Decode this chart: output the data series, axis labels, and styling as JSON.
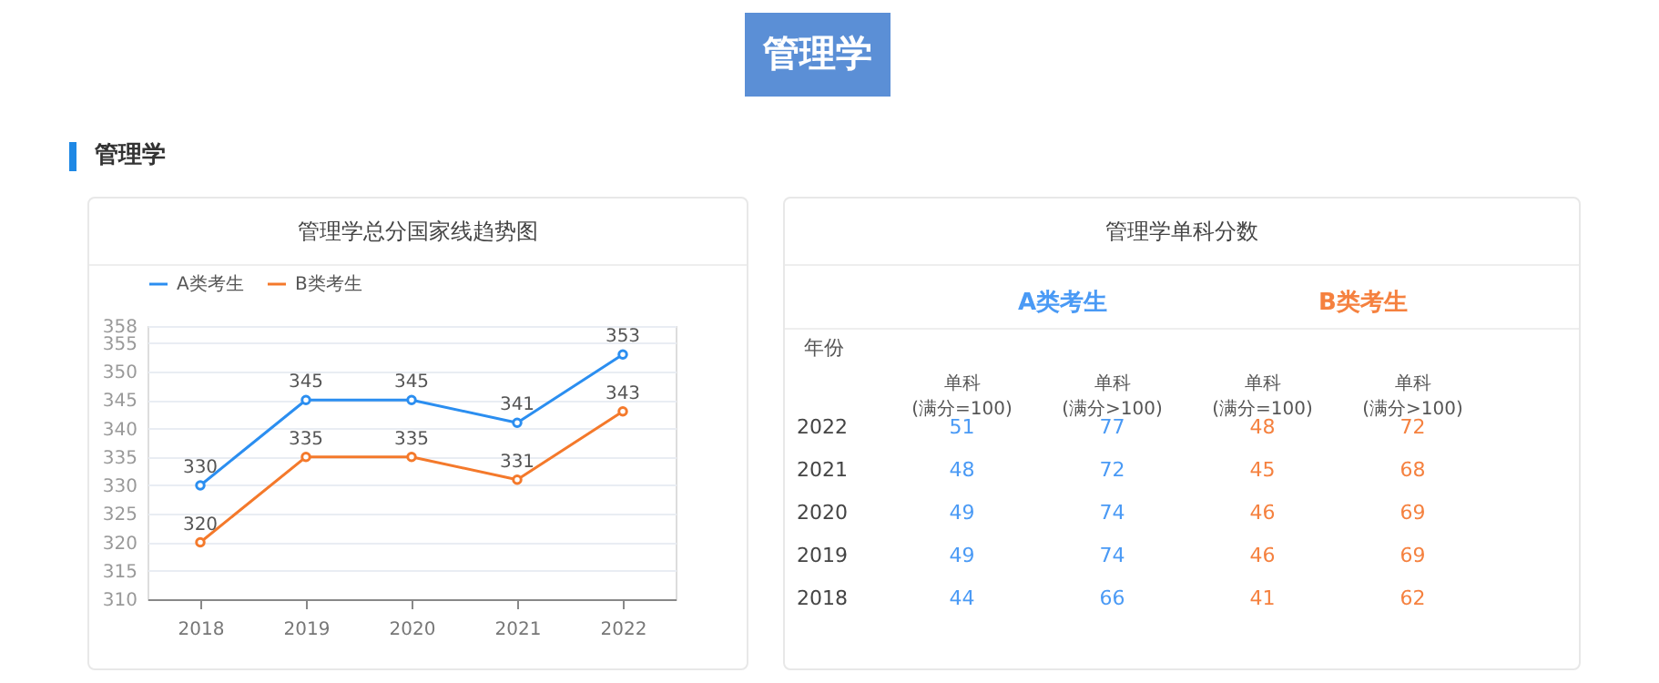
{
  "chart_data": [
    {
      "type": "line",
      "title": "管理学总分国家线趋势图",
      "annotations": [
        "管理学",
        "管理学"
      ],
      "categories": [
        "2018",
        "2019",
        "2020",
        "2021",
        "2022"
      ],
      "series": [
        {
          "name": "A类考生",
          "color": "#2b8ef0",
          "values": [
            330,
            345,
            345,
            341,
            353
          ]
        },
        {
          "name": "B类考生",
          "color": "#f4792b",
          "values": [
            320,
            335,
            335,
            331,
            343
          ]
        }
      ],
      "ylim": [
        310,
        358
      ],
      "yticks": [
        310,
        315,
        320,
        325,
        330,
        335,
        340,
        345,
        350,
        355,
        358
      ],
      "grid": "y",
      "legend": "top",
      "marker": "circle",
      "data_labels": true
    },
    {
      "type": "heatmap",
      "title": "管理学单科分数",
      "ylabel": "年份",
      "annotations": [
        "A类考生",
        "B类考生"
      ],
      "categories": [
        "单科\n(满分=100)",
        "单科\n(满分>100)",
        "单科\n(满分=100)",
        "单科\n(满分>100)"
      ],
      "y_categories": [
        "2022",
        "2021",
        "2020",
        "2019",
        "2018"
      ],
      "colors": [
        "#4a9af5",
        "#4a9af5",
        "#f5813f",
        "#f5813f"
      ],
      "data_labels": true,
      "cells": [
        [
          51,
          77,
          48,
          72
        ],
        [
          48,
          72,
          45,
          68
        ],
        [
          49,
          74,
          46,
          69
        ],
        [
          49,
          74,
          46,
          69
        ],
        [
          44,
          66,
          41,
          62
        ]
      ]
    }
  ]
}
